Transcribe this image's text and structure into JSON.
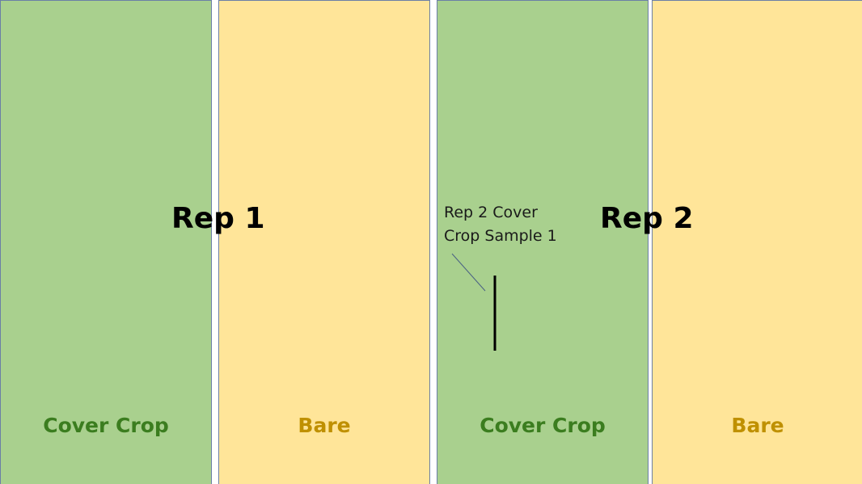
{
  "plots": [
    {
      "label": "Cover Crop",
      "color": "#a9d08e",
      "label_color": "#3b7d1f"
    },
    {
      "label": "Bare",
      "color": "#ffe599",
      "label_color": "#bf9000"
    },
    {
      "label": "Cover Crop",
      "color": "#a9d08e",
      "label_color": "#3b7d1f"
    },
    {
      "label": "Bare",
      "color": "#ffe599",
      "label_color": "#bf9000"
    }
  ],
  "reps": [
    {
      "label": "Rep 1"
    },
    {
      "label": "Rep 2"
    }
  ],
  "sample": {
    "line1": "Rep 2 Cover",
    "line2": "Crop Sample 1"
  },
  "colors": {
    "border": "#6b7fa6",
    "sample_line": "#000000",
    "leader_line": "#4a6184"
  }
}
